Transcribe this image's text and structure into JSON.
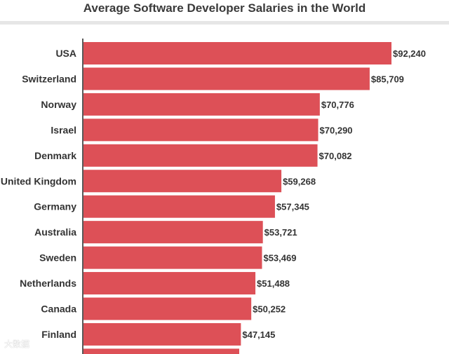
{
  "chart_data": {
    "type": "bar",
    "orientation": "horizontal",
    "title": "Average Software Developer Salaries in the World",
    "categories": [
      "USA",
      "Switzerland",
      "Norway",
      "Israel",
      "Denmark",
      "United Kingdom",
      "Germany",
      "Australia",
      "Sweden",
      "Netherlands",
      "Canada",
      "Finland"
    ],
    "values": [
      92240,
      85709,
      70776,
      70290,
      70082,
      59268,
      57345,
      53721,
      53469,
      51488,
      50252,
      47145
    ],
    "value_labels": [
      "$92,240",
      "$85,709",
      "$70,776",
      "$70,290",
      "$70,082",
      "$59,268",
      "$57,345",
      "$53,721",
      "$53,469",
      "$51,488",
      "$50,252",
      "$47,145"
    ],
    "xlim": [
      0,
      92240
    ],
    "grid": false,
    "legend": "none",
    "bar_color": "#dd5057"
  },
  "watermark": "大数据"
}
